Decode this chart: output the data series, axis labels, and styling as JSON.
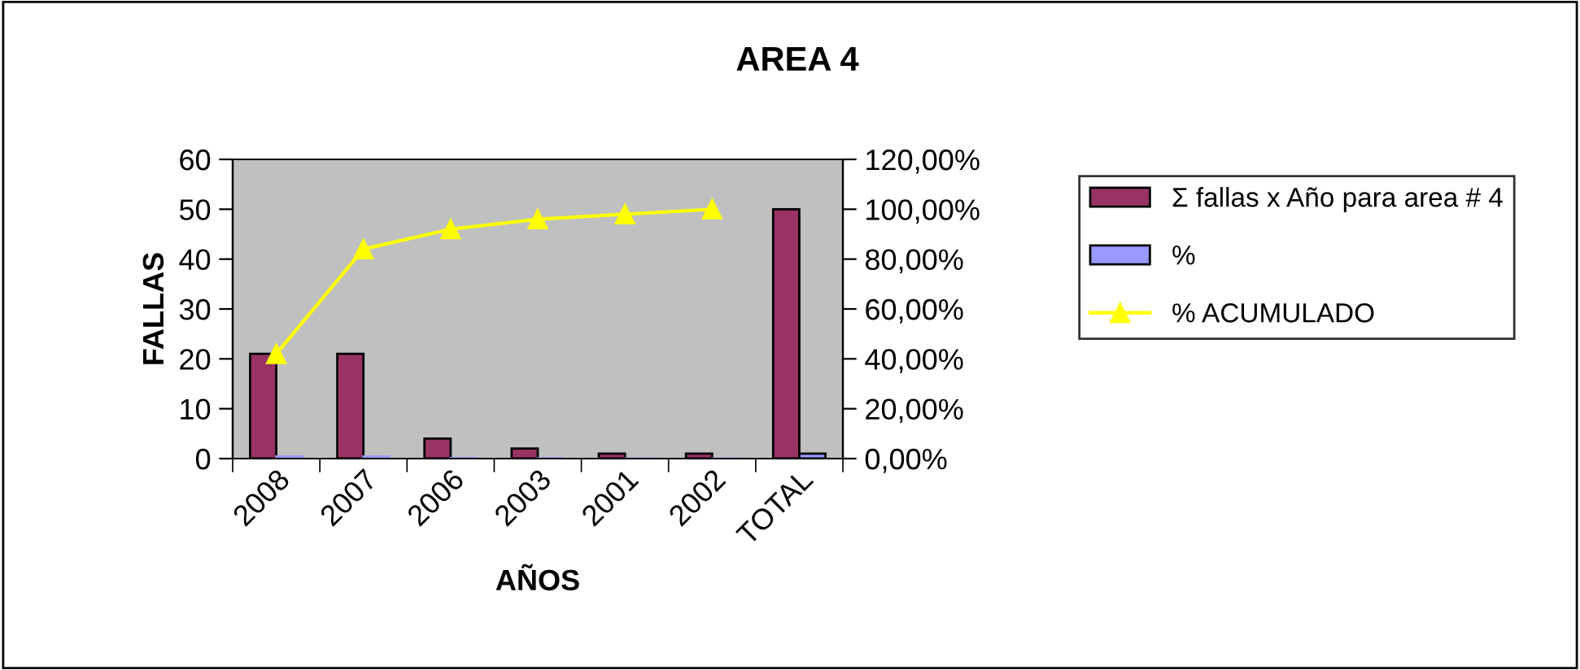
{
  "chart_data": {
    "type": "bar",
    "title": "AREA 4",
    "xlabel": "AÑOS",
    "ylabel": "FALLAS",
    "categories": [
      "2008",
      "2007",
      "2006",
      "2003",
      "2001",
      "2002",
      "TOTAL"
    ],
    "series": [
      {
        "name": "Σ fallas x Año para area # 4",
        "color": "#993366",
        "values": [
          21,
          21,
          4,
          2,
          1,
          1,
          50
        ]
      },
      {
        "name": "%",
        "color": "#9999ff",
        "values": [
          0.42,
          0.42,
          0.08,
          0.04,
          0.02,
          0.02,
          1
        ]
      },
      {
        "name": "% ACUMULADO",
        "type": "line",
        "axis": "y2",
        "color": "#ffff00",
        "marker": "triangle",
        "values": [
          42,
          84,
          92,
          96,
          98,
          100,
          null
        ]
      }
    ],
    "ylim": [
      0,
      60
    ],
    "yticks": [
      0,
      10,
      20,
      30,
      40,
      50,
      60
    ],
    "y2lim": [
      0,
      120
    ],
    "y2ticks": [
      {
        "value": 0,
        "label": "0,00%"
      },
      {
        "value": 20,
        "label": "20,00%"
      },
      {
        "value": 40,
        "label": "40,00%"
      },
      {
        "value": 60,
        "label": "60,00%"
      },
      {
        "value": 80,
        "label": "80,00%"
      },
      {
        "value": 100,
        "label": "100,00%"
      },
      {
        "value": 120,
        "label": "120,00%"
      }
    ],
    "grid": false,
    "legend": "right"
  }
}
